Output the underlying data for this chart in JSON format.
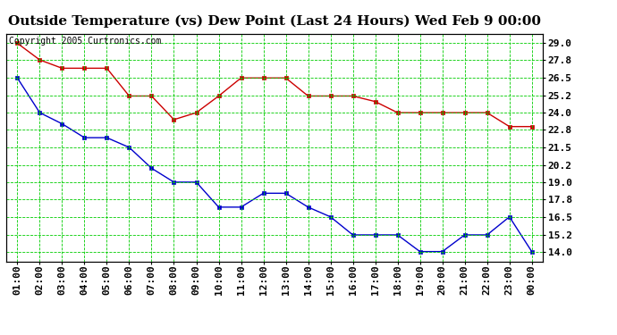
{
  "title": "Outside Temperature (vs) Dew Point (Last 24 Hours) Wed Feb 9 00:00",
  "copyright": "Copyright 2005 Curtronics.com",
  "x_labels": [
    "01:00",
    "02:00",
    "03:00",
    "04:00",
    "05:00",
    "06:00",
    "07:00",
    "08:00",
    "09:00",
    "10:00",
    "11:00",
    "12:00",
    "13:00",
    "14:00",
    "15:00",
    "16:00",
    "17:00",
    "18:00",
    "19:00",
    "20:00",
    "21:00",
    "22:00",
    "23:00",
    "00:00"
  ],
  "temp_data": [
    29.0,
    27.8,
    27.2,
    27.2,
    27.2,
    25.2,
    25.2,
    23.5,
    24.0,
    25.2,
    26.5,
    26.5,
    26.5,
    25.2,
    25.2,
    25.2,
    24.8,
    24.0,
    24.0,
    24.0,
    24.0,
    24.0,
    23.0,
    23.0
  ],
  "dew_data": [
    26.5,
    24.0,
    23.2,
    22.2,
    22.2,
    21.5,
    20.0,
    19.0,
    19.0,
    17.2,
    17.2,
    18.2,
    18.2,
    17.2,
    16.5,
    15.2,
    15.2,
    15.2,
    14.0,
    14.0,
    15.2,
    15.2,
    16.5,
    14.0
  ],
  "temp_color": "#cc0000",
  "dew_color": "#0000cc",
  "bg_color": "white",
  "grid_color": "#00cc00",
  "yticks": [
    14.0,
    15.2,
    16.5,
    17.8,
    19.0,
    20.2,
    21.5,
    22.8,
    24.0,
    25.2,
    26.5,
    27.8,
    29.0
  ],
  "ylim": [
    13.3,
    29.7
  ],
  "title_fontsize": 11,
  "tick_fontsize": 8,
  "copyright_fontsize": 7
}
